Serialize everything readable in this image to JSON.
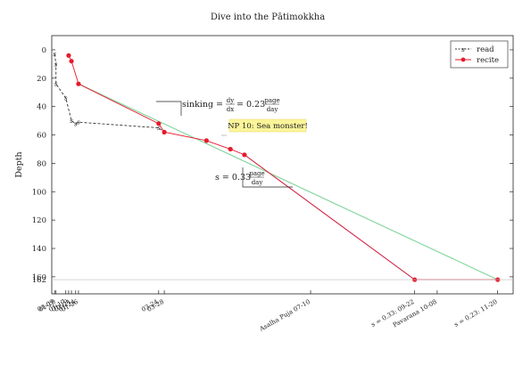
{
  "chart_data": {
    "type": "line",
    "title": "Dive into the Pātimokkha",
    "ylabel": "Depth",
    "xlabel": "",
    "y_inverted": true,
    "ylim": [
      -10,
      172
    ],
    "xlim": [
      "01-07",
      "12-01"
    ],
    "yticks": [
      0,
      20,
      40,
      60,
      80,
      100,
      120,
      140,
      160
    ],
    "extra_ytick": 162,
    "grid": false,
    "legend": {
      "position": "top-right",
      "entries": [
        {
          "name": "read",
          "color": "#333333",
          "style": "dashed",
          "marker": "s"
        },
        {
          "name": "recite",
          "color": "#e8192c",
          "style": "solid",
          "marker": "circle"
        }
      ]
    },
    "xtick_labels": [
      "01-09",
      "01-10",
      "01-17",
      "01-19",
      "01-21",
      "01-24",
      "01-26",
      "03-24",
      "03-28",
      "Asalha Puja 07-10",
      "Pavarana 10-08"
    ],
    "series": [
      {
        "name": "read",
        "color": "#333333",
        "dashed": true,
        "points": [
          {
            "x": "01-09",
            "y": 3
          },
          {
            "x": "01-10",
            "y": 10
          },
          {
            "x": "01-10",
            "y": 24
          },
          {
            "x": "01-17",
            "y": 34
          },
          {
            "x": "01-21",
            "y": 50
          },
          {
            "x": "01-24",
            "y": 52
          },
          {
            "x": "01-26",
            "y": 51
          },
          {
            "x": "03-24",
            "y": 55
          },
          {
            "x": "03-28",
            "y": 58
          }
        ]
      },
      {
        "name": "recite",
        "color": "#e8192c",
        "dashed": false,
        "points": [
          {
            "x": "01-19",
            "y": 4
          },
          {
            "x": "01-21",
            "y": 8
          },
          {
            "x": "01-26",
            "y": 24
          },
          {
            "x": "03-24",
            "y": 52
          },
          {
            "x": "03-28",
            "y": 58
          },
          {
            "x": "04-27",
            "y": 64
          },
          {
            "x": "05-14",
            "y": 70
          },
          {
            "x": "05-24",
            "y": 74
          },
          {
            "x": "09-22",
            "y": 162
          },
          {
            "x": "11-20",
            "y": 162
          }
        ]
      }
    ],
    "projections": [
      {
        "color": "#9a8fd8",
        "from": {
          "x": "05-24",
          "y": 74
        },
        "to": {
          "x": "09-22",
          "y": 162
        },
        "label": "s = 0.33: 09-22"
      },
      {
        "color": "#7fd49a",
        "from": {
          "x": "01-26",
          "y": 24
        },
        "to": {
          "x": "11-20",
          "y": 162
        },
        "label": "s = 0.23: 11-20"
      }
    ],
    "annotations": {
      "sinking": {
        "prefix": "sinking =",
        "frac_num": "dy",
        "frac_den": "dx",
        "eq": "= 0.23",
        "unit_num": "page",
        "unit_den": "day"
      },
      "slope": {
        "prefix": "s = 0.33",
        "unit_num": "page",
        "unit_den": "day"
      },
      "callout": {
        "text": "NP 10: Sea monster!",
        "x": "04-27",
        "y": 64
      }
    }
  }
}
